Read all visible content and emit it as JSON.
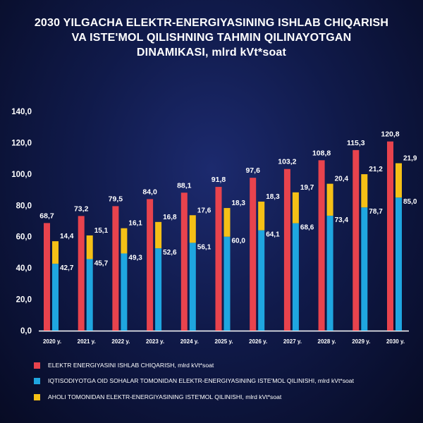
{
  "title_lines": [
    "2030 YILGACHA ELEKTR-ENERGIYASINING ISHLAB CHIQARISH",
    "VA ISTE'MOL QILISHNING TAHMIN QILINAYOTGAN",
    "DINAMIKASI, mlrd kVt*soat"
  ],
  "colors": {
    "production": "#e8434d",
    "economy": "#1fa6e0",
    "population": "#f5c016",
    "axis": "#ffffff"
  },
  "chart_data": {
    "type": "bar",
    "title": "2030 YILGACHA ELEKTR-ENERGIYASINING ISHLAB CHIQARISH VA ISTE'MOL QILISHNING TAHMIN QILINAYOTGAN DINAMIKASI, mlrd kVt*soat",
    "categories": [
      "2020 y.",
      "2021 y.",
      "2022 y.",
      "2023 y.",
      "2024 y.",
      "2025 y.",
      "2026 y.",
      "2027 y.",
      "2028 y.",
      "2029 y.",
      "2030 y."
    ],
    "series": [
      {
        "name": "ELEKTR ENERGIYASINI ISHLAB CHIQARISH, mlrd kVt*soat",
        "values": [
          68.7,
          73.2,
          79.5,
          84.0,
          88.1,
          91.8,
          97.6,
          103.2,
          108.8,
          115.3,
          120.8
        ],
        "labels": [
          "68,7",
          "73,2",
          "79,5",
          "84,0",
          "88,1",
          "91,8",
          "97,6",
          "103,2",
          "108,8",
          "115,3",
          "120,8"
        ]
      },
      {
        "name": "IQTISODIYOTGA OID SOHALAR TOMONIDAN ELEKTR-ENERGIYASINING ISTE'MOL QILINISHI, mlrd kVt*soat",
        "values": [
          42.7,
          45.7,
          49.3,
          52.6,
          56.1,
          60.0,
          64.1,
          68.6,
          73.4,
          78.7,
          85.0
        ],
        "labels": [
          "42,7",
          "45,7",
          "49,3",
          "52,6",
          "56,1",
          "60,0",
          "64,1",
          "68,6",
          "73,4",
          "78,7",
          "85,0"
        ]
      },
      {
        "name": "AHOLI TOMONIDAN ELEKTR-ENERGIYASINING ISTE'MOL QILINISHI, mlrd kVt*soat",
        "values": [
          14.4,
          15.1,
          16.1,
          16.8,
          17.6,
          18.3,
          18.3,
          19.7,
          20.4,
          21.2,
          21.9
        ],
        "labels": [
          "14,4",
          "15,1",
          "16,1",
          "16,8",
          "17,6",
          "18,3",
          "18,3",
          "19,7",
          "20,4",
          "21,2",
          "21,9"
        ]
      }
    ],
    "stacked_consumption": true,
    "yticks": [
      "0,0",
      "20,0",
      "40,0",
      "60,0",
      "80,0",
      "100,0",
      "120,0",
      "140,0"
    ],
    "ylim": [
      0,
      140
    ],
    "legend_position": "bottom"
  }
}
